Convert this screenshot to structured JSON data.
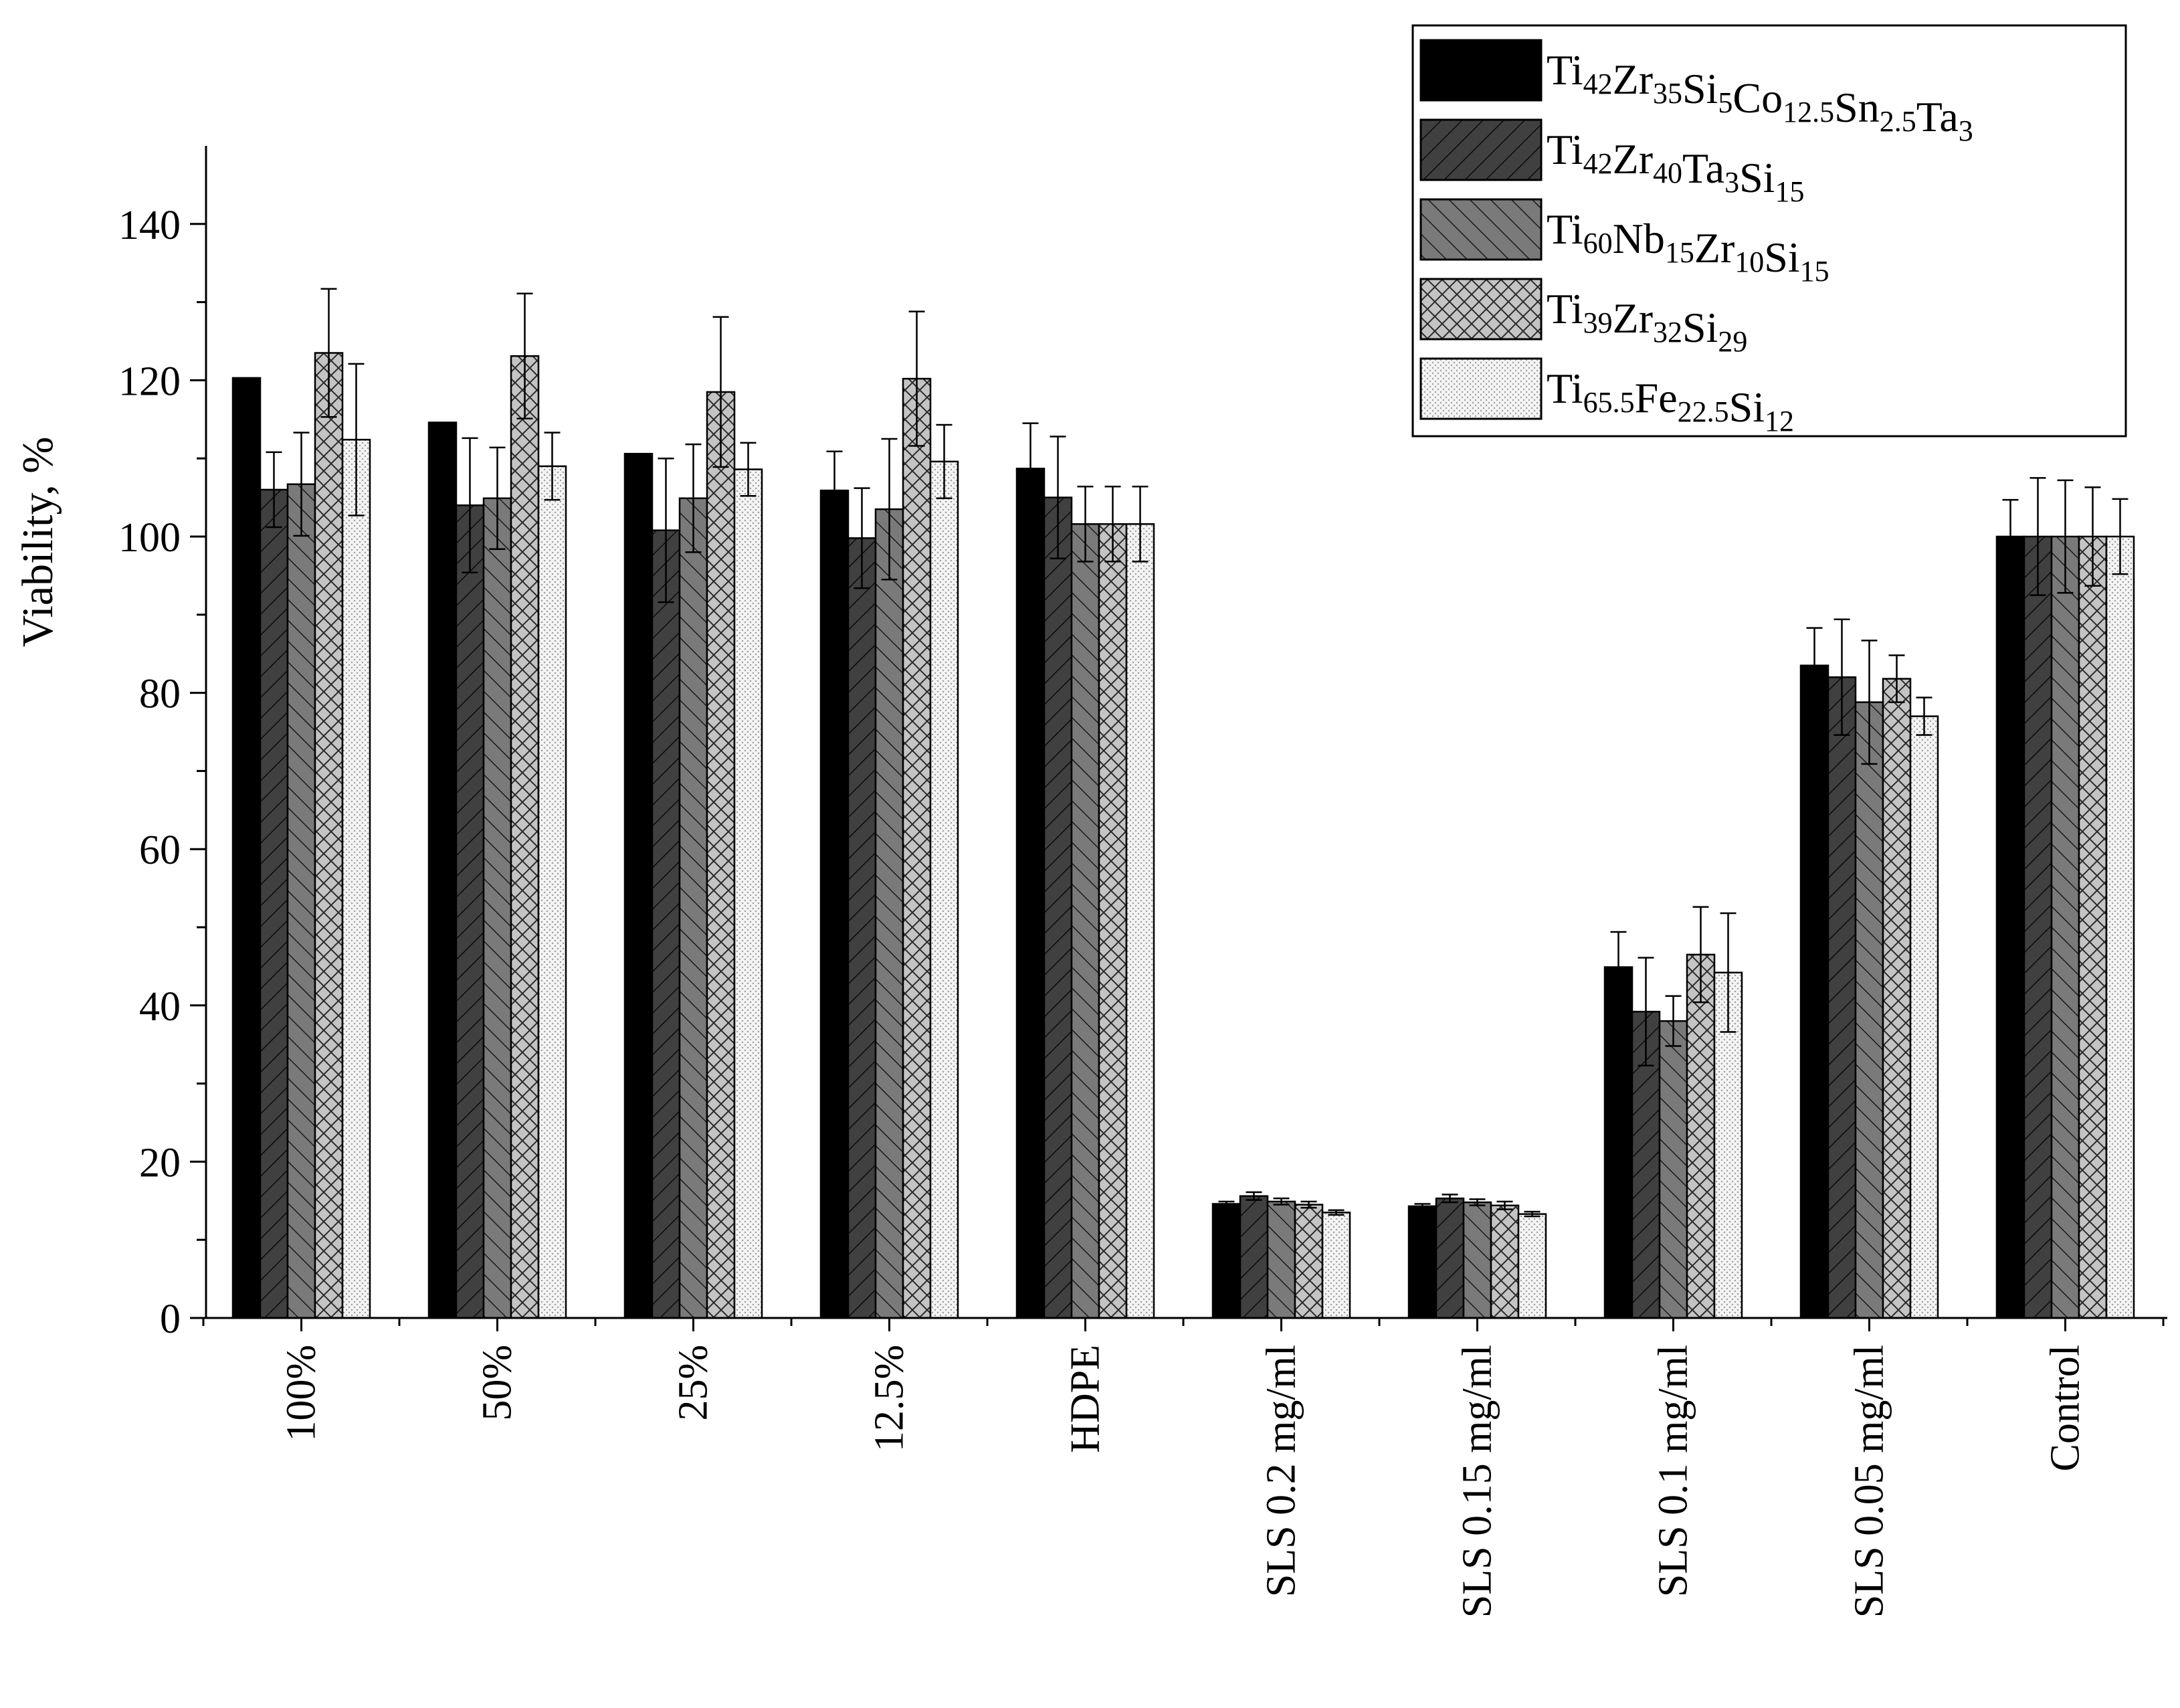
{
  "chart_data": {
    "type": "bar",
    "ylabel": "Viability, %",
    "xlabel": "",
    "ylim": [
      0,
      150
    ],
    "yticks": [
      0,
      20,
      40,
      60,
      80,
      100,
      120,
      140
    ],
    "ytick_labels": [
      "0",
      "20",
      "40",
      "60",
      "80",
      "100",
      "120",
      "140"
    ],
    "grid": false,
    "legend_position": "top-right",
    "categories": [
      "100%",
      "50%",
      "25%",
      "12.5%",
      "HDPE",
      "SLS 0.2 mg/ml",
      "SLS 0.15 mg/ml",
      "SLS 0.1 mg/ml",
      "SLS 0.05 mg/ml",
      "Control"
    ],
    "series": [
      {
        "name": "Ti42Zr35Si5Co12.5Sn2.5Ta3",
        "name_parts": [
          [
            "Ti",
            "42"
          ],
          [
            "Zr",
            "35"
          ],
          [
            "Si",
            "5"
          ],
          [
            "Co",
            "12.5"
          ],
          [
            "Sn",
            "2.5"
          ],
          [
            "Ta",
            "3"
          ]
        ],
        "pattern": "solid",
        "values": [
          120.3,
          114.6,
          110.6,
          105.9,
          108.7,
          14.6,
          14.3,
          44.9,
          83.5,
          100.0
        ],
        "errors": [
          0,
          0,
          0,
          5.0,
          5.8,
          0.3,
          0.3,
          4.5,
          4.8,
          4.7
        ]
      },
      {
        "name": "Ti42Zr40Ta3Si15",
        "name_parts": [
          [
            "Ti",
            "42"
          ],
          [
            "Zr",
            "40"
          ],
          [
            "Ta",
            "3"
          ],
          [
            "Si",
            "15"
          ]
        ],
        "pattern": "diag-dark",
        "values": [
          106.0,
          104.0,
          100.8,
          99.8,
          105.0,
          15.6,
          15.3,
          39.2,
          82.0,
          100.0
        ],
        "errors": [
          4.8,
          8.6,
          9.2,
          6.4,
          7.8,
          0.5,
          0.5,
          6.9,
          7.4,
          7.5
        ]
      },
      {
        "name": "Ti60Nb15Zr10Si15",
        "name_parts": [
          [
            "Ti",
            "60"
          ],
          [
            "Nb",
            "15"
          ],
          [
            "Zr",
            "10"
          ],
          [
            "Si",
            "15"
          ]
        ],
        "pattern": "diag-gray",
        "values": [
          106.7,
          104.9,
          104.9,
          103.5,
          101.6,
          14.9,
          14.8,
          38.0,
          78.8,
          100.0
        ],
        "errors": [
          6.6,
          6.5,
          6.9,
          9.0,
          4.8,
          0.4,
          0.4,
          3.2,
          7.9,
          7.2
        ]
      },
      {
        "name": "Ti39Zr32Si29",
        "name_parts": [
          [
            "Ti",
            "39"
          ],
          [
            "Zr",
            "32"
          ],
          [
            "Si",
            "29"
          ]
        ],
        "pattern": "crosshatch",
        "values": [
          123.5,
          123.1,
          118.5,
          120.2,
          101.6,
          14.5,
          14.4,
          46.5,
          81.8,
          100.0
        ],
        "errors": [
          8.2,
          8.0,
          9.6,
          8.6,
          4.8,
          0.4,
          0.5,
          6.1,
          3.0,
          6.3
        ]
      },
      {
        "name": "Ti65.5Fe22.5Si12",
        "name_parts": [
          [
            "Ti",
            "65.5"
          ],
          [
            "Fe",
            "22.5"
          ],
          [
            "Si",
            "12"
          ]
        ],
        "pattern": "dotted",
        "values": [
          112.4,
          109.0,
          108.6,
          109.6,
          101.6,
          13.5,
          13.3,
          44.2,
          77.0,
          100.0
        ],
        "errors": [
          9.7,
          4.3,
          3.4,
          4.7,
          4.8,
          0.3,
          0.3,
          7.6,
          2.4,
          4.8
        ]
      }
    ]
  }
}
